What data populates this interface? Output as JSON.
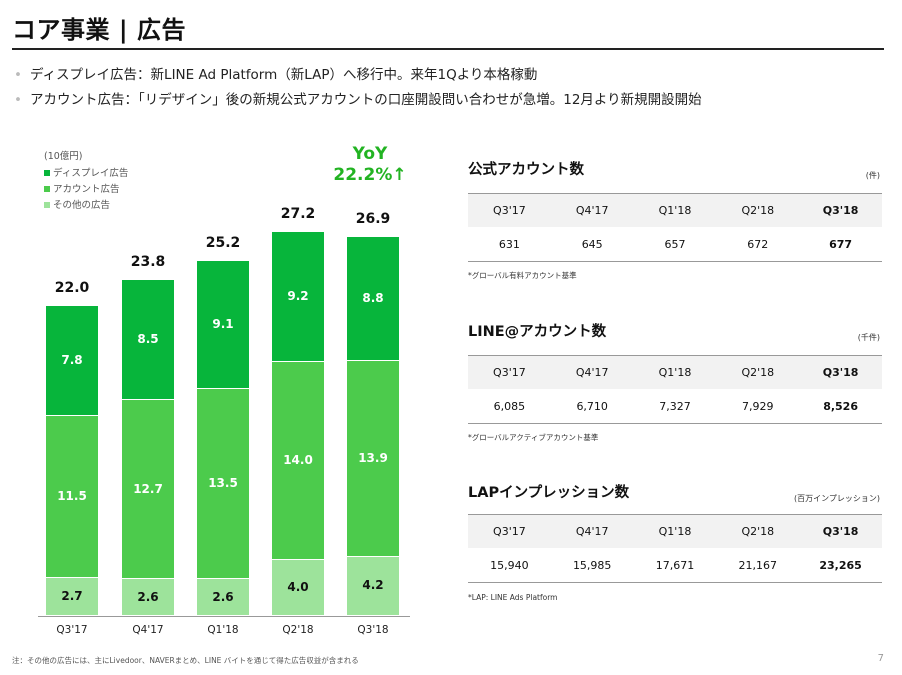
{
  "header": {
    "title": "コア事業 | 広告"
  },
  "bullets": [
    "ディスプレイ広告：新LINE Ad Platform（新LAP）へ移行中。来年1Qより本格稼動",
    "アカウント広告：「リデザイン」後の新規公式アカウントの口座開設問い合わせが急増。12月より新規開設開始"
  ],
  "colors": {
    "display": "#07b53b",
    "account": "#4ccb4c",
    "other": "#9de39b",
    "yoy": "#22b322"
  },
  "legend": {
    "unit": "(10億円)",
    "items": [
      "ディスプレイ広告",
      "アカウント広告",
      "その他の広告"
    ]
  },
  "yoy": {
    "label": "YoY",
    "value": "22.2%↑"
  },
  "chart_data": {
    "type": "bar",
    "stacked": true,
    "unit": "(10億円)",
    "categories": [
      "Q3'17",
      "Q4'17",
      "Q1'18",
      "Q2'18",
      "Q3'18"
    ],
    "series": [
      {
        "name": "その他の広告",
        "values": [
          2.7,
          2.6,
          2.6,
          4.0,
          4.2
        ]
      },
      {
        "name": "アカウント広告",
        "values": [
          11.5,
          12.7,
          13.5,
          14.0,
          13.9
        ]
      },
      {
        "name": "ディスプレイ広告",
        "values": [
          7.8,
          8.5,
          9.1,
          9.2,
          8.8
        ]
      }
    ],
    "totals": [
      "22.0",
      "23.8",
      "25.2",
      "27.2",
      "26.9"
    ],
    "segment_labels": [
      [
        "2.7",
        "2.6",
        "2.6",
        "4.0",
        "4.2"
      ],
      [
        "11.5",
        "12.7",
        "13.5",
        "14.0",
        "13.9"
      ],
      [
        "7.8",
        "8.5",
        "9.1",
        "9.2",
        "8.8"
      ]
    ],
    "ylim": [
      0,
      30
    ],
    "legend_position": "top-left"
  },
  "tables": [
    {
      "title": "公式アカウント数",
      "unit": "(件)",
      "headers": [
        "Q3'17",
        "Q4'17",
        "Q1'18",
        "Q2'18",
        "Q3'18"
      ],
      "values": [
        "631",
        "645",
        "657",
        "672",
        "677"
      ],
      "note": "*グローバル有料アカウント基準"
    },
    {
      "title": "LINE@アカウント数",
      "unit": "(千件)",
      "headers": [
        "Q3'17",
        "Q4'17",
        "Q1'18",
        "Q2'18",
        "Q3'18"
      ],
      "values": [
        "6,085",
        "6,710",
        "7,327",
        "7,929",
        "8,526"
      ],
      "note": "*グローバルアクティブアカウント基準"
    },
    {
      "title": "LAPインプレッション数",
      "unit": "(百万インプレッション)",
      "headers": [
        "Q3'17",
        "Q4'17",
        "Q1'18",
        "Q2'18",
        "Q3'18"
      ],
      "values": [
        "15,940",
        "15,985",
        "17,671",
        "21,167",
        "23,265"
      ],
      "note": "*LAP: LINE Ads Platform"
    }
  ],
  "footer": {
    "note": "注：その他の広告には、主にLivedoor、NAVERまとめ、LINE バイトを通じて得た広告収益が含まれる",
    "page": "7"
  }
}
